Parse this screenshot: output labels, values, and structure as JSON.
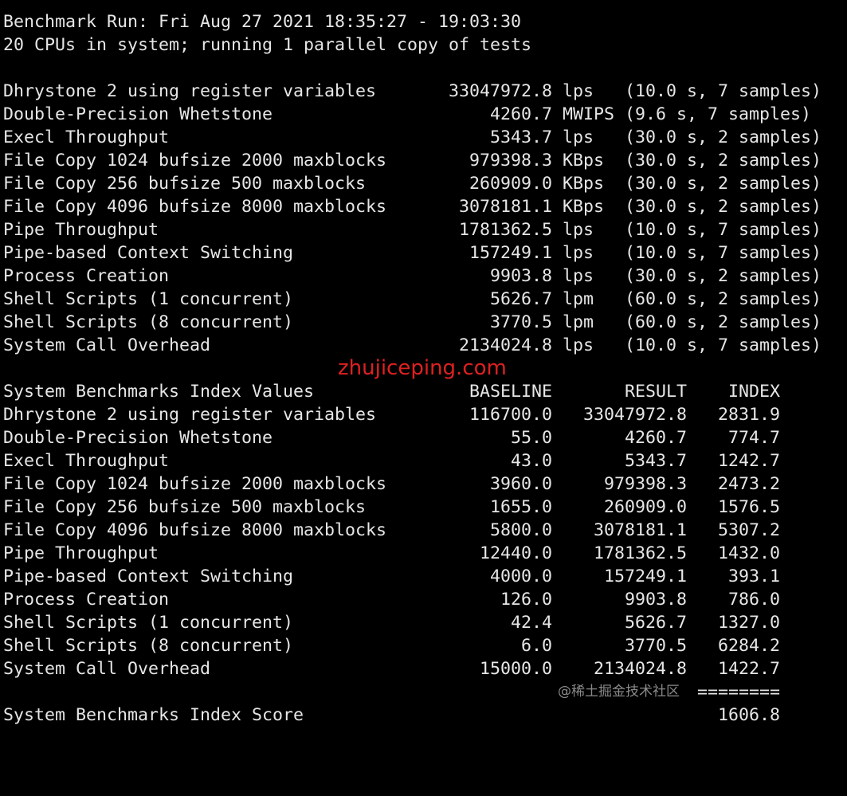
{
  "terminal": {
    "separator": "------------------------------------------------------------------------",
    "run_line": "Benchmark Run: Fri Aug 27 2021 18:35:27 - 19:03:30",
    "cpu_line": "20 CPUs in system; running 1 parallel copy of tests",
    "results": [
      {
        "name": "Dhrystone 2 using register variables",
        "value": "33047972.8",
        "unit": "lps",
        "detail": "(10.0 s, 7 samples)"
      },
      {
        "name": "Double-Precision Whetstone",
        "value": "4260.7",
        "unit": "MWIPS",
        "detail": "(9.6 s, 7 samples)"
      },
      {
        "name": "Execl Throughput",
        "value": "5343.7",
        "unit": "lps",
        "detail": "(30.0 s, 2 samples)"
      },
      {
        "name": "File Copy 1024 bufsize 2000 maxblocks",
        "value": "979398.3",
        "unit": "KBps",
        "detail": "(30.0 s, 2 samples)"
      },
      {
        "name": "File Copy 256 bufsize 500 maxblocks",
        "value": "260909.0",
        "unit": "KBps",
        "detail": "(30.0 s, 2 samples)"
      },
      {
        "name": "File Copy 4096 bufsize 8000 maxblocks",
        "value": "3078181.1",
        "unit": "KBps",
        "detail": "(30.0 s, 2 samples)"
      },
      {
        "name": "Pipe Throughput",
        "value": "1781362.5",
        "unit": "lps",
        "detail": "(10.0 s, 7 samples)"
      },
      {
        "name": "Pipe-based Context Switching",
        "value": "157249.1",
        "unit": "lps",
        "detail": "(10.0 s, 7 samples)"
      },
      {
        "name": "Process Creation",
        "value": "9903.8",
        "unit": "lps",
        "detail": "(30.0 s, 2 samples)"
      },
      {
        "name": "Shell Scripts (1 concurrent)",
        "value": "5626.7",
        "unit": "lpm",
        "detail": "(60.0 s, 2 samples)"
      },
      {
        "name": "Shell Scripts (8 concurrent)",
        "value": "3770.5",
        "unit": "lpm",
        "detail": "(60.0 s, 2 samples)"
      },
      {
        "name": "System Call Overhead",
        "value": "2134024.8",
        "unit": "lps",
        "detail": "(10.0 s, 7 samples)"
      }
    ],
    "index_header": {
      "title": "System Benchmarks Index Values",
      "baseline": "BASELINE",
      "result": "RESULT",
      "index": "INDEX"
    },
    "index_rows": [
      {
        "name": "Dhrystone 2 using register variables",
        "baseline": "116700.0",
        "result": "33047972.8",
        "index": "2831.9"
      },
      {
        "name": "Double-Precision Whetstone",
        "baseline": "55.0",
        "result": "4260.7",
        "index": "774.7"
      },
      {
        "name": "Execl Throughput",
        "baseline": "43.0",
        "result": "5343.7",
        "index": "1242.7"
      },
      {
        "name": "File Copy 1024 bufsize 2000 maxblocks",
        "baseline": "3960.0",
        "result": "979398.3",
        "index": "2473.2"
      },
      {
        "name": "File Copy 256 bufsize 500 maxblocks",
        "baseline": "1655.0",
        "result": "260909.0",
        "index": "1576.5"
      },
      {
        "name": "File Copy 4096 bufsize 8000 maxblocks",
        "baseline": "5800.0",
        "result": "3078181.1",
        "index": "5307.2"
      },
      {
        "name": "Pipe Throughput",
        "baseline": "12440.0",
        "result": "1781362.5",
        "index": "1432.0"
      },
      {
        "name": "Pipe-based Context Switching",
        "baseline": "4000.0",
        "result": "157249.1",
        "index": "393.1"
      },
      {
        "name": "Process Creation",
        "baseline": "126.0",
        "result": "9903.8",
        "index": "786.0"
      },
      {
        "name": "Shell Scripts (1 concurrent)",
        "baseline": "42.4",
        "result": "5626.7",
        "index": "1327.0"
      },
      {
        "name": "Shell Scripts (8 concurrent)",
        "baseline": "6.0",
        "result": "3770.5",
        "index": "6284.2"
      },
      {
        "name": "System Call Overhead",
        "baseline": "15000.0",
        "result": "2134024.8",
        "index": "1422.7"
      }
    ],
    "score_rule": "========",
    "score_label": "System Benchmarks Index Score",
    "score_value": "1606.8"
  },
  "watermarks": {
    "site": "zhujiceping.com",
    "community": "@稀土掘金技术社区"
  },
  "colors": {
    "background": "#000000",
    "text": "#e6e6e6",
    "watermark": "#e02020"
  }
}
